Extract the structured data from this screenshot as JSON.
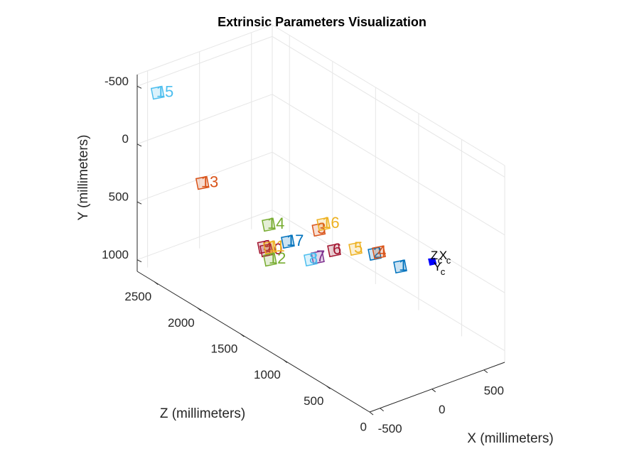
{
  "chart_data": {
    "type": "scatter3d",
    "title": "Extrinsic Parameters Visualization",
    "xlabel": "X (millimeters)",
    "ylabel": "Y (millimeters)",
    "zlabel": "Z (millimeters)",
    "xlim": [
      -600,
      700
    ],
    "ylim": [
      -600,
      1100
    ],
    "zlim": [
      0,
      2700
    ],
    "xticks": [
      -500,
      0,
      500
    ],
    "yticks": [
      -500,
      0,
      500,
      1000
    ],
    "zticks": [
      0,
      500,
      1000,
      1500,
      2000,
      2500
    ],
    "y_reversed": true,
    "grid": true,
    "series": [
      {
        "name": "1",
        "color": "#0072BD",
        "x": 0,
        "y": 207,
        "z": 369
      },
      {
        "name": "2",
        "color": "#0072BD",
        "x": 0,
        "y": 231,
        "z": 666
      },
      {
        "name": "3",
        "color": "#D95319",
        "x": 0,
        "y": 315,
        "z": 1316
      },
      {
        "name": "4",
        "color": "#D95319",
        "x": 0,
        "y": 196,
        "z": 616
      },
      {
        "name": "5",
        "color": "#EDB120",
        "x": 0,
        "y": 288,
        "z": 889
      },
      {
        "name": "6",
        "color": "#A2142F",
        "x": 0,
        "y": 412,
        "z": 1137
      },
      {
        "name": "7",
        "color": "#7E2F8E",
        "x": 0,
        "y": 559,
        "z": 1327
      },
      {
        "name": "8",
        "color": "#4DBEEE",
        "x": 0,
        "y": 615,
        "z": 1410
      },
      {
        "name": "9",
        "color": "#A2142F",
        "x": 0,
        "y": 750,
        "z": 1950
      },
      {
        "name": "10",
        "color": "#A2142F",
        "x": 0,
        "y": 766,
        "z": 1922
      },
      {
        "name": "11",
        "color": "#EDB120",
        "x": 0,
        "y": 723,
        "z": 1881
      },
      {
        "name": "12",
        "color": "#77AC30",
        "x": 0,
        "y": 828,
        "z": 1881
      },
      {
        "name": "13",
        "color": "#D95319",
        "x": 0,
        "y": 519,
        "z": 2666
      },
      {
        "name": "14",
        "color": "#77AC30",
        "x": 0,
        "y": 534,
        "z": 1897
      },
      {
        "name": "15",
        "color": "#4DBEEE",
        "x": -500,
        "y": -463,
        "z": 2583
      },
      {
        "name": "16",
        "color": "#EDB120",
        "x": 0,
        "y": 241,
        "z": 1260
      },
      {
        "name": "17",
        "color": "#0072BD",
        "x": 0,
        "y": 580,
        "z": 1674
      }
    ],
    "camera": {
      "x": 0,
      "y": 0,
      "z": 0,
      "color": "#0000FF",
      "labels": [
        {
          "text": "Z",
          "sub": "c"
        },
        {
          "text": "X",
          "sub": "c"
        },
        {
          "text": "Y",
          "sub": "c"
        }
      ]
    }
  }
}
